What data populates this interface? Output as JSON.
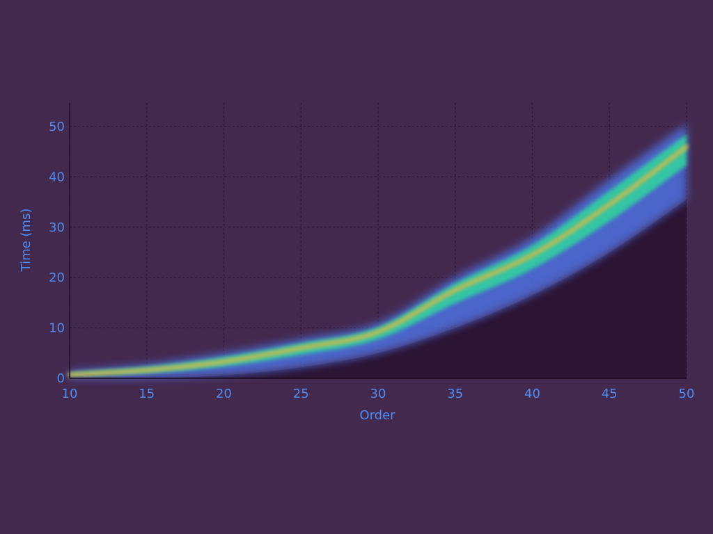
{
  "chart_data": {
    "type": "area",
    "title": "",
    "xlabel": "Order",
    "ylabel": "Time (ms)",
    "xlim": [
      10,
      50
    ],
    "ylim": [
      0,
      55
    ],
    "xticks": [
      10,
      15,
      20,
      25,
      30,
      35,
      40,
      45,
      50
    ],
    "yticks": [
      0,
      10,
      20,
      30,
      40,
      50
    ],
    "grid": true,
    "legend": "none",
    "colors": {
      "background": "#44294e",
      "plot_fill_below": "#2c1434",
      "text": "#4d8cf2",
      "grid": "#2a1630",
      "density_low": "#4d6fe0",
      "density_mid": "#30d0a0",
      "density_high": "#e8b83a"
    },
    "series": [
      {
        "name": "",
        "role": "lower",
        "x": [
          10,
          15,
          20,
          25,
          30,
          35,
          40,
          45,
          50
        ],
        "y": [
          0,
          0,
          0.6,
          2.2,
          5.0,
          10.0,
          16.5,
          25.0,
          35.5
        ]
      },
      {
        "name": "",
        "role": "median",
        "x": [
          10,
          15,
          20,
          25,
          30,
          35,
          40,
          45,
          50
        ],
        "y": [
          0.7,
          1.6,
          3.3,
          6.0,
          9.2,
          17.5,
          24.5,
          34.5,
          46.0
        ]
      },
      {
        "name": "",
        "role": "upper",
        "x": [
          10,
          15,
          20,
          25,
          30,
          35,
          40,
          45,
          50
        ],
        "y": [
          1.5,
          2.8,
          5.0,
          7.8,
          11.0,
          20.0,
          28.0,
          39.5,
          50.5
        ]
      }
    ]
  }
}
